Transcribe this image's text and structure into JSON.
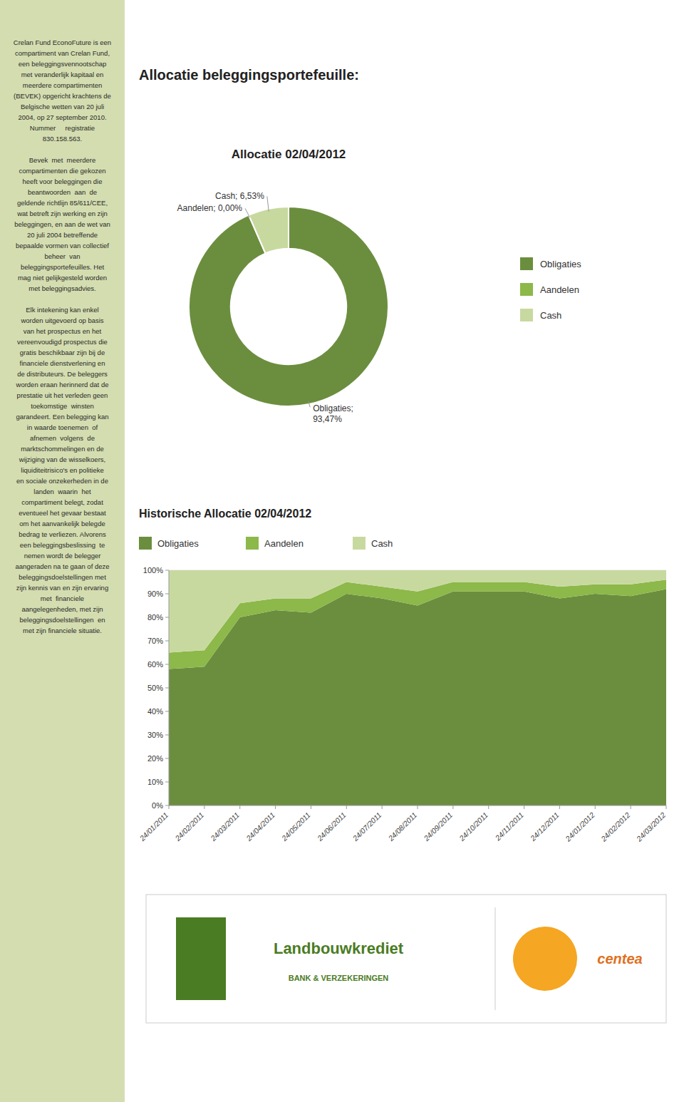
{
  "title": "Allocatie beleggingsportefeuille:",
  "text": [
    [
      "Crelan Fund EconoFuture is een",
      "compartiment van Crelan Fund,",
      "een beleggingsvennootschap",
      "met veranderlijk kapitaal en",
      "meerdere compartimenten",
      "(BEVEK) opgericht krachtens de",
      "Belgische wetten van 20 juli",
      "2004, op 27 september 2010.",
      "Nummer     registratie",
      "830.158.563."
    ],
    [
      "Bevek  met  meerdere",
      "compartimenten die gekozen",
      "heeft voor beleggingen die",
      "beantwoorden  aan  de",
      "geldende richtlijn 85/611/CEE,",
      "wat betreft zijn werking en zijn",
      "beleggingen, en aan de wet van",
      "20 juli 2004 betreffende",
      "bepaalde vormen van collectief",
      "beheer  van",
      "beleggingsportefeuilles. Het",
      "mag niet gelijkgesteld worden",
      "met beleggingsadvies."
    ],
    [
      "Elk intekening kan enkel",
      "worden uitgevoerd op basis",
      "van het prospectus en het",
      "vereenvoudigd prospectus die",
      "gratis beschikbaar zijn bij de",
      "financiele dienstverlening en",
      "de distributeurs. De beleggers",
      "worden eraan herinnerd dat de",
      "prestatie uit het verleden geen",
      "toekomstige  winsten",
      "garandeert. Een belegging kan",
      "in waarde toenemen  of",
      "afnemen  volgens  de",
      "marktschommelingen en de",
      "wijziging van de wisselkoers,",
      "liquiditeitrisico's en politieke",
      "en sociale onzekerheden in de",
      "landen  waarin  het",
      "compartiment belegt, zodat",
      "eventueel het gevaar bestaat",
      "om het aanvankelijk belegde",
      "bedrag te verliezen. Alvorens",
      "een beleggingsbeslissing  te",
      "nemen wordt de belegger",
      "aangeraden na te gaan of deze",
      "beleggingsdoelstellingen met",
      "zijn kennis van en zijn ervaring",
      "met  financiele",
      "aangelegenheden, met zijn",
      "beleggingsdoelstellingen  en",
      "met zijn financiele situatie."
    ]
  ],
  "logos": [
    {
      "name": "Landbouwkrediet",
      "subtitle": "BANK & VERZEKERINGEN",
      "color": "#4a7c23"
    },
    {
      "name": "centea",
      "color": "#e07020"
    }
  ],
  "chart_data": [
    {
      "type": "donut",
      "title": "Allocatie 02/04/2012",
      "categories": [
        "Obligaties",
        "Aandelen",
        "Cash"
      ],
      "values": [
        93.47,
        0.0,
        6.53
      ],
      "colors": [
        "#6b8e3e",
        "#8db84a",
        "#c8d9a0"
      ],
      "data_labels": true,
      "value_labels": [
        "Obligaties;\n93,47%",
        "Aandelen; 0,00%",
        "Cash; 6,53%"
      ],
      "legend": "right"
    },
    {
      "type": "area",
      "stacked": true,
      "title": "Historische Allocatie 02/04/2012",
      "categories": [
        "24/01/2011",
        "24/02/2011",
        "24/03/2011",
        "24/04/2011",
        "24/05/2011",
        "24/06/2011",
        "24/07/2011",
        "24/08/2011",
        "24/09/2011",
        "24/10/2011",
        "24/11/2011",
        "24/12/2011",
        "24/01/2012",
        "24/02/2012",
        "24/03/2012"
      ],
      "series": [
        {
          "name": "Obligaties",
          "color": "#6b8e3e",
          "values": [
            58,
            59,
            80,
            83,
            82,
            90,
            88,
            85,
            91,
            91,
            91,
            88,
            90,
            89,
            92
          ]
        },
        {
          "name": "Aandelen",
          "color": "#8db84a",
          "values": [
            7,
            7,
            6,
            5,
            6,
            5,
            5,
            6,
            4,
            4,
            4,
            5,
            4,
            5,
            4
          ]
        },
        {
          "name": "Cash",
          "color": "#c8d9a0",
          "values": [
            35,
            34,
            14,
            12,
            12,
            5,
            7,
            9,
            5,
            5,
            5,
            7,
            6,
            6,
            4
          ]
        }
      ],
      "ylim": [
        0,
        100
      ],
      "yticks": [
        {
          "value": 0,
          "label": "0%"
        },
        {
          "value": 10,
          "label": "10%"
        },
        {
          "value": 20,
          "label": "20%"
        },
        {
          "value": 30,
          "label": "30%"
        },
        {
          "value": 40,
          "label": "40%"
        },
        {
          "value": 50,
          "label": "50%"
        },
        {
          "value": 60,
          "label": "60%"
        },
        {
          "value": 70,
          "label": "70%"
        },
        {
          "value": 80,
          "label": "80%"
        },
        {
          "value": 90,
          "label": "90%"
        },
        {
          "value": 100,
          "label": "100%"
        }
      ],
      "grid": true,
      "legend": "top"
    }
  ]
}
